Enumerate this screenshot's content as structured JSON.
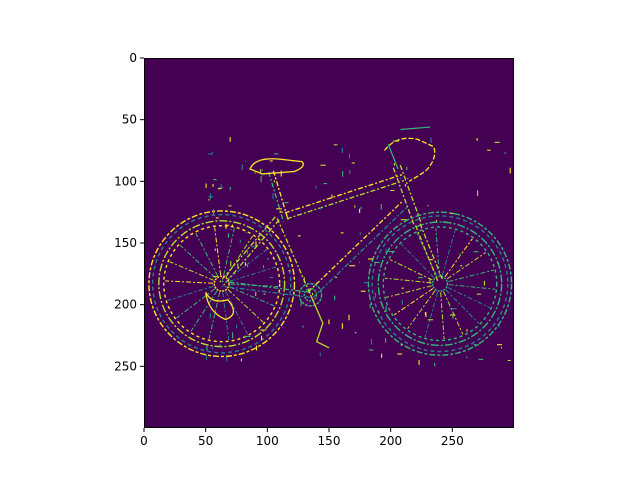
{
  "chart_data": {
    "type": "heatmap",
    "title": "",
    "xlabel": "",
    "ylabel": "",
    "colormap": "viridis",
    "image_shape": [
      300,
      300
    ],
    "xlim": [
      0,
      300
    ],
    "ylim": [
      300,
      0
    ],
    "xticks": [
      0,
      50,
      100,
      150,
      200,
      250
    ],
    "yticks": [
      0,
      50,
      100,
      150,
      200,
      250
    ],
    "xtick_labels": [
      "0",
      "50",
      "100",
      "150",
      "200",
      "250"
    ],
    "ytick_labels": [
      "0",
      "50",
      "100",
      "150",
      "200",
      "250"
    ],
    "background_color": "#440154",
    "edge_colors": [
      "#fde725",
      "#b5de2b",
      "#35b779",
      "#26828e"
    ],
    "content": "edge map of a bicycle (binary edges on dark background)",
    "edge_features": {
      "rear_wheel": {
        "cx": 63,
        "cy": 183,
        "r": 59
      },
      "front_wheel": {
        "cx": 240,
        "cy": 183,
        "r": 58
      },
      "rear_hub": {
        "cx": 63,
        "cy": 183
      },
      "front_hub": {
        "cx": 240,
        "cy": 180
      },
      "crank": {
        "cx": 135,
        "cy": 192
      },
      "seat": [
        [
          88,
          84
        ],
        [
          130,
          84
        ]
      ],
      "seat_post": [
        [
          103,
          92
        ],
        [
          115,
          132
        ]
      ],
      "top_tube": [
        [
          115,
          128
        ],
        [
          210,
          97
        ]
      ],
      "down_tube": [
        [
          135,
          192
        ],
        [
          212,
          118
        ]
      ],
      "seat_stay": [
        [
          108,
          130
        ],
        [
          63,
          183
        ]
      ],
      "chain_stay": [
        [
          135,
          192
        ],
        [
          63,
          183
        ]
      ],
      "head_tube": [
        [
          205,
          88
        ],
        [
          222,
          135
        ]
      ],
      "fork": [
        [
          222,
          135
        ],
        [
          240,
          180
        ]
      ],
      "handlebar": [
        [
          200,
          60
        ],
        [
          240,
          70
        ]
      ]
    }
  }
}
